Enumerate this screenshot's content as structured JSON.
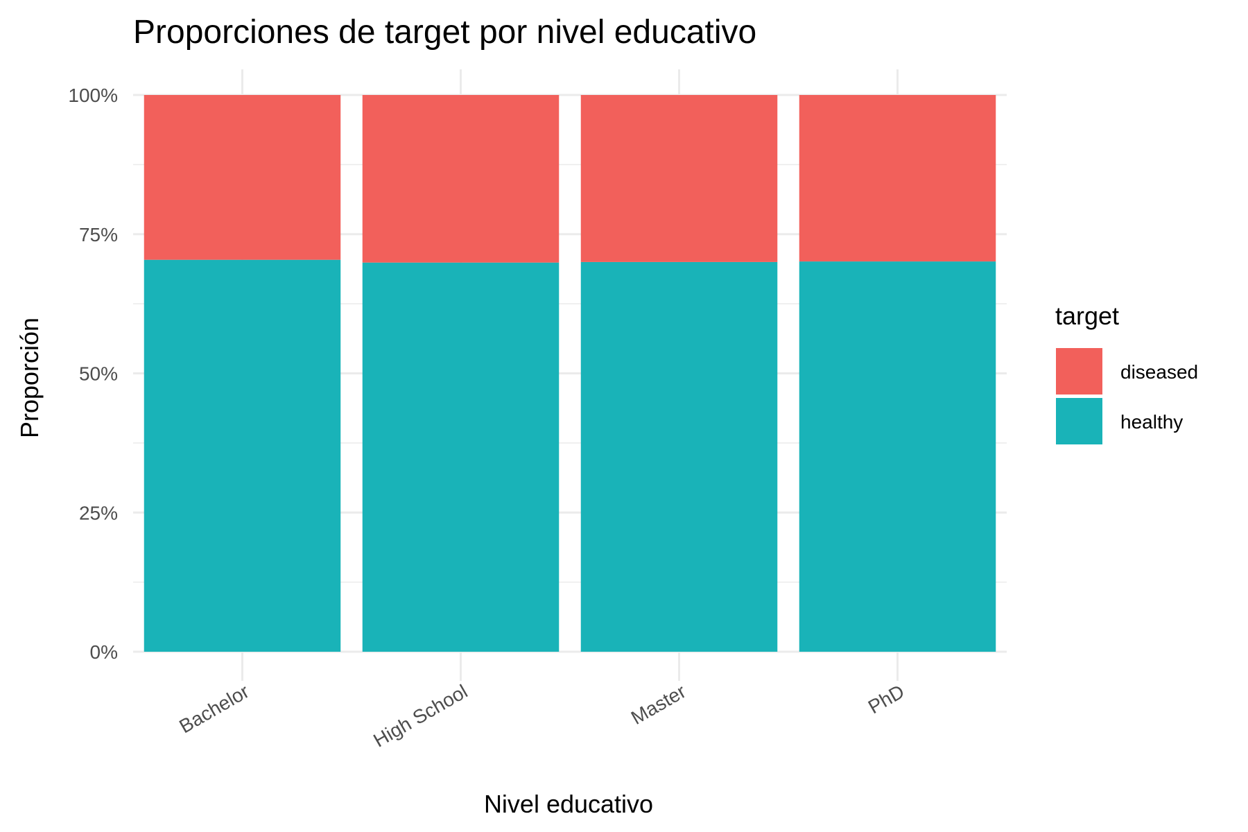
{
  "chart_data": {
    "type": "bar",
    "stacked": true,
    "title": "Proporciones de target por nivel educativo",
    "xlabel": "Nivel educativo",
    "ylabel": "Proporción",
    "categories": [
      "Bachelor",
      "High School",
      "Master",
      "PhD"
    ],
    "series": [
      {
        "name": "healthy",
        "values": [
          0.704,
          0.699,
          0.7,
          0.701
        ],
        "color": "#19B3B8"
      },
      {
        "name": "diseased",
        "values": [
          0.296,
          0.301,
          0.3,
          0.299
        ],
        "color": "#F2605B"
      }
    ],
    "ylim": [
      0,
      1
    ],
    "yticks": [
      0,
      0.25,
      0.5,
      0.75,
      1
    ],
    "ytick_labels": [
      "0%",
      "25%",
      "50%",
      "75%",
      "100%"
    ],
    "grid": true,
    "legend": {
      "title": "target",
      "placement": "right",
      "items": [
        {
          "label": "diseased",
          "color": "#F2605B"
        },
        {
          "label": "healthy",
          "color": "#19B3B8"
        }
      ]
    }
  }
}
